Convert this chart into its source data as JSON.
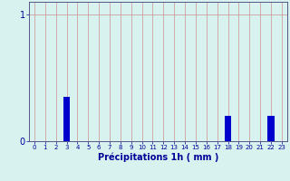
{
  "hours": [
    0,
    1,
    2,
    3,
    4,
    5,
    6,
    7,
    8,
    9,
    10,
    11,
    12,
    13,
    14,
    15,
    16,
    17,
    18,
    19,
    20,
    21,
    22,
    23
  ],
  "values": [
    0,
    0,
    0,
    0.35,
    0,
    0,
    0,
    0,
    0,
    0,
    0,
    0,
    0,
    0,
    0,
    0,
    0,
    0,
    0.2,
    0,
    0,
    0,
    0.2,
    0
  ],
  "xlabel": "Précipitations 1h ( mm )",
  "ylim": [
    0,
    1.1
  ],
  "yticks": [
    0,
    1
  ],
  "bar_color": "#0000cc",
  "bar_edge_color": "#0044ee",
  "background_color": "#d8f2f0",
  "grid_color": "#d09090",
  "axis_color": "#555588",
  "tick_color": "#000099",
  "label_color": "#000099"
}
